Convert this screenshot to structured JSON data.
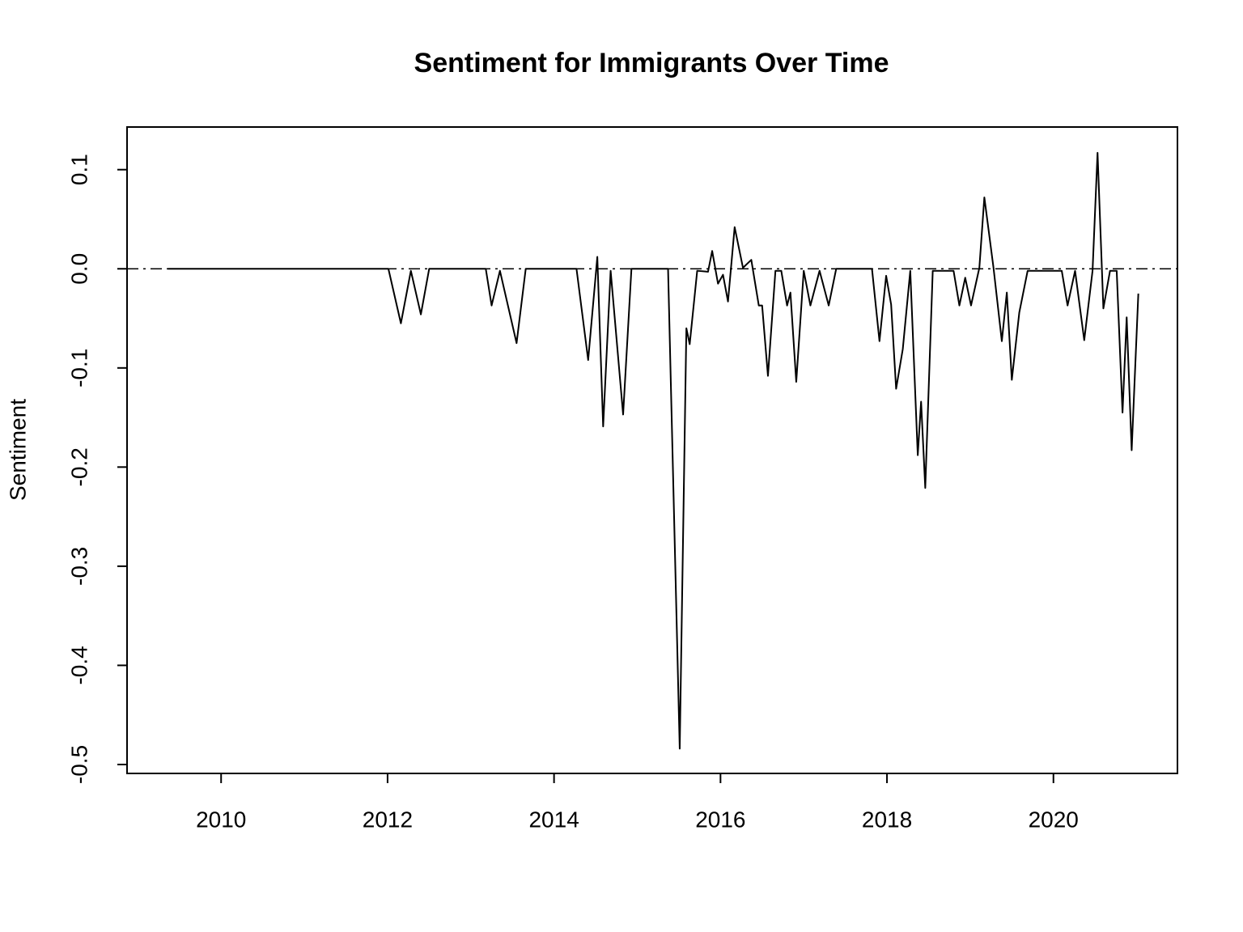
{
  "chart_data": {
    "type": "line",
    "title": "Sentiment for Immigrants Over Time",
    "y_label": "Sentiment",
    "x": [
      2009.36,
      2012.01,
      2012.16,
      2012.28,
      2012.4,
      2012.5,
      2013.18,
      2013.25,
      2013.35,
      2013.55,
      2013.66,
      2014.27,
      2014.41,
      2014.52,
      2014.59,
      2014.68,
      2014.83,
      2014.93,
      2015.37,
      2015.51,
      2015.59,
      2015.63,
      2015.72,
      2015.85,
      2015.9,
      2015.97,
      2016.03,
      2016.09,
      2016.17,
      2016.27,
      2016.37,
      2016.46,
      2016.5,
      2016.57,
      2016.66,
      2016.73,
      2016.8,
      2016.84,
      2016.91,
      2017.0,
      2017.08,
      2017.19,
      2017.3,
      2017.39,
      2017.82,
      2017.91,
      2017.99,
      2018.05,
      2018.11,
      2018.19,
      2018.28,
      2018.37,
      2018.41,
      2018.46,
      2018.55,
      2018.8,
      2018.87,
      2018.94,
      2019.01,
      2019.11,
      2019.17,
      2019.28,
      2019.38,
      2019.44,
      2019.5,
      2019.59,
      2019.69,
      2020.1,
      2020.17,
      2020.26,
      2020.37,
      2020.47,
      2020.53,
      2020.6,
      2020.68,
      2020.76,
      2020.83,
      2020.88,
      2020.94,
      2021.02
    ],
    "series": [
      {
        "name": "Sentiment",
        "color": "#000000",
        "values": [
          0,
          0,
          -0.055,
          -0.002,
          -0.046,
          0,
          0,
          -0.037,
          -0.002,
          -0.075,
          0,
          0,
          -0.092,
          0.012,
          -0.159,
          -0.002,
          -0.147,
          0,
          0,
          -0.484,
          -0.06,
          -0.076,
          -0.002,
          -0.003,
          0.018,
          -0.015,
          -0.006,
          -0.033,
          0.042,
          0.001,
          0.009,
          -0.037,
          -0.037,
          -0.108,
          -0.002,
          -0.002,
          -0.037,
          -0.024,
          -0.114,
          -0.002,
          -0.037,
          -0.002,
          -0.037,
          0,
          0,
          -0.073,
          -0.007,
          -0.036,
          -0.121,
          -0.081,
          -0.002,
          -0.188,
          -0.134,
          -0.221,
          -0.002,
          -0.002,
          -0.037,
          -0.009,
          -0.037,
          0.001,
          0.072,
          0.001,
          -0.073,
          -0.024,
          -0.112,
          -0.044,
          -0.002,
          -0.002,
          -0.037,
          -0.002,
          -0.072,
          -0.002,
          0.117,
          -0.04,
          -0.002,
          -0.002,
          -0.145,
          -0.049,
          -0.183,
          -0.025
        ]
      }
    ],
    "xlim": [
      2008.87,
      2021.49
    ],
    "xticks": [
      2010,
      2012,
      2014,
      2016,
      2018,
      2020
    ],
    "ylim": [
      -0.509,
      0.143
    ],
    "yticks": [
      -0.5,
      -0.4,
      -0.3,
      -0.2,
      -0.1,
      {
        "value": 0,
        "label": "0.0"
      },
      0.1
    ],
    "hline": 0,
    "grid": false
  }
}
